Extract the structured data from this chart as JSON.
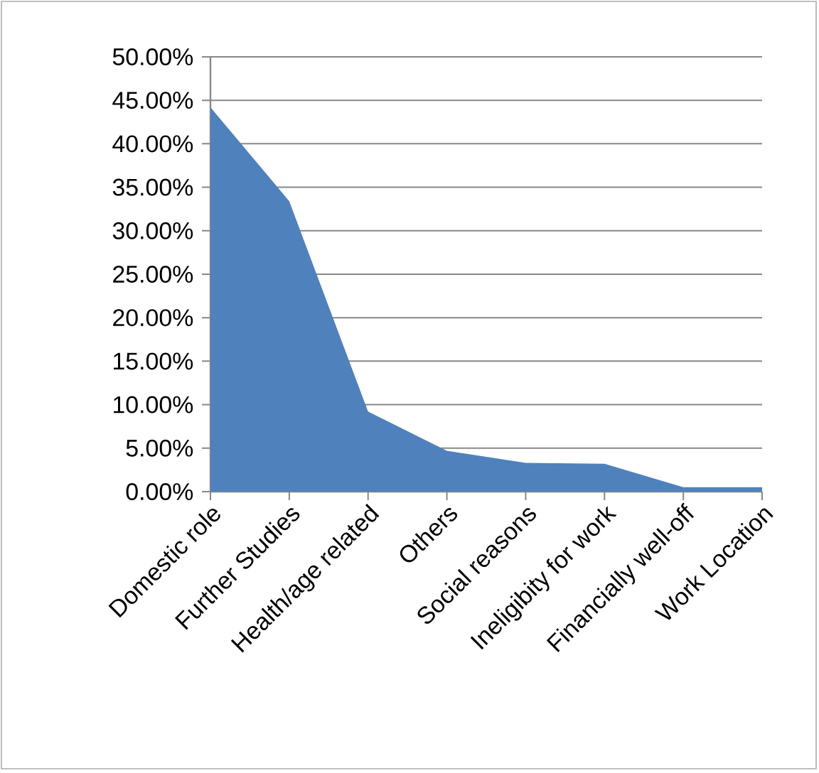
{
  "chart_data": {
    "type": "area",
    "categories": [
      "Domestic role",
      "Further Studies",
      "Health/age related",
      "Others",
      "Social reasons",
      "Ineligibity for work",
      "Financially well-off",
      "Work Location"
    ],
    "values": [
      44.2,
      33.4,
      9.2,
      4.7,
      3.3,
      3.2,
      0.5,
      0.5
    ],
    "color": "#4f81bd",
    "ylim": [
      0,
      50
    ],
    "yticks": [
      {
        "value": 0,
        "label": "0.00%"
      },
      {
        "value": 5,
        "label": "5.00%"
      },
      {
        "value": 10,
        "label": "10.00%"
      },
      {
        "value": 15,
        "label": "15.00%"
      },
      {
        "value": 20,
        "label": "20.00%"
      },
      {
        "value": 25,
        "label": "25.00%"
      },
      {
        "value": 30,
        "label": "30.00%"
      },
      {
        "value": 35,
        "label": "35.00%"
      },
      {
        "value": 40,
        "label": "40.00%"
      },
      {
        "value": 45,
        "label": "45.00%"
      },
      {
        "value": 50,
        "label": "50.00%"
      }
    ],
    "grid": "y"
  }
}
